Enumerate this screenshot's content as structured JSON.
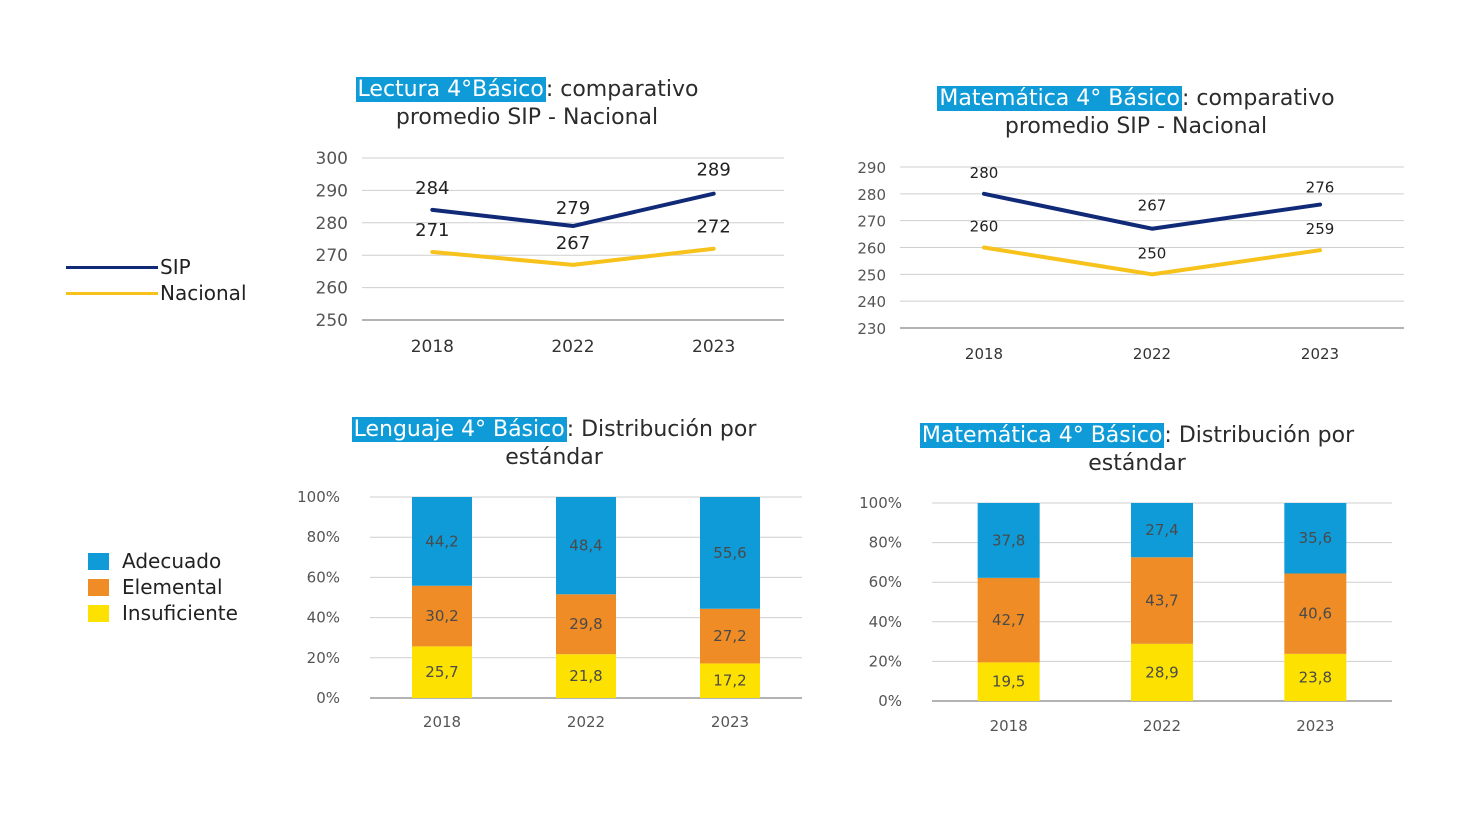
{
  "legend_top": {
    "items": [
      {
        "label": "SIP",
        "color": "#102a78"
      },
      {
        "label": "Nacional",
        "color": "#f6c21b"
      }
    ]
  },
  "legend_bottom": {
    "items": [
      {
        "label": "Adecuado",
        "color": "#0e9bd8"
      },
      {
        "label": "Elemental",
        "color": "#ef8c25"
      },
      {
        "label": "Insuficiente",
        "color": "#fde100"
      }
    ]
  },
  "charts": {
    "lectura": {
      "title_highlight": "Lectura 4°Básico",
      "title_rest": ": comparativo",
      "title_line2": "promedio SIP - Nacional"
    },
    "matematica_line": {
      "title_highlight": "Matemática 4° Básico",
      "title_rest": ": comparativo",
      "title_line2": "promedio SIP - Nacional"
    },
    "lenguaje": {
      "title_highlight": "Lenguaje 4° Básico",
      "title_rest": ": Distribución por",
      "title_line2": "estándar"
    },
    "matematica_bar": {
      "title_highlight": "Matemática 4° Básico",
      "title_rest": ": Distribución por",
      "title_line2": "estándar"
    }
  },
  "chart_data": [
    {
      "type": "line",
      "title": "Lectura 4°Básico: comparativo promedio SIP - Nacional",
      "categories": [
        "2018",
        "2022",
        "2023"
      ],
      "ylim": [
        250,
        300
      ],
      "yticks": [
        250,
        260,
        270,
        280,
        290,
        300
      ],
      "grid": true,
      "series": [
        {
          "name": "SIP",
          "color": "#102a78",
          "values": [
            284,
            279,
            289
          ]
        },
        {
          "name": "Nacional",
          "color": "#f6c21b",
          "values": [
            271,
            267,
            272
          ]
        }
      ]
    },
    {
      "type": "line",
      "title": "Matemática 4° Básico: comparativo promedio SIP - Nacional",
      "categories": [
        "2018",
        "2022",
        "2023"
      ],
      "ylim": [
        230,
        290
      ],
      "yticks": [
        230,
        240,
        250,
        260,
        270,
        280,
        290
      ],
      "grid": true,
      "series": [
        {
          "name": "SIP",
          "color": "#102a78",
          "values": [
            280,
            267,
            276
          ]
        },
        {
          "name": "Nacional",
          "color": "#f6c21b",
          "values": [
            260,
            250,
            259
          ]
        }
      ]
    },
    {
      "type": "bar",
      "stacked": true,
      "title": "Lenguaje 4° Básico: Distribución por estándar",
      "categories": [
        "2018",
        "2022",
        "2023"
      ],
      "ylim": [
        0,
        100
      ],
      "yticks": [
        "0%",
        "20%",
        "40%",
        "60%",
        "80%",
        "100%"
      ],
      "grid": true,
      "series": [
        {
          "name": "Insuficiente",
          "color": "#fde100",
          "values": [
            25.7,
            21.8,
            17.2
          ],
          "labels": [
            "25,7",
            "21,8",
            "17,2"
          ]
        },
        {
          "name": "Elemental",
          "color": "#ef8c25",
          "values": [
            30.2,
            29.8,
            27.2
          ],
          "labels": [
            "30,2",
            "29,8",
            "27,2"
          ]
        },
        {
          "name": "Adecuado",
          "color": "#0e9bd8",
          "values": [
            44.2,
            48.4,
            55.6
          ],
          "labels": [
            "44,2",
            "48,4",
            "55,6"
          ]
        }
      ]
    },
    {
      "type": "bar",
      "stacked": true,
      "title": "Matemática 4° Básico: Distribución por estándar",
      "categories": [
        "2018",
        "2022",
        "2023"
      ],
      "ylim": [
        0,
        100
      ],
      "yticks": [
        "0%",
        "20%",
        "40%",
        "60%",
        "80%",
        "100%"
      ],
      "grid": true,
      "series": [
        {
          "name": "Insuficiente",
          "color": "#fde100",
          "values": [
            19.5,
            28.9,
            23.8
          ],
          "labels": [
            "19,5",
            "28,9",
            "23,8"
          ]
        },
        {
          "name": "Elemental",
          "color": "#ef8c25",
          "values": [
            42.7,
            43.7,
            40.6
          ],
          "labels": [
            "42,7",
            "43,7",
            "40,6"
          ]
        },
        {
          "name": "Adecuado",
          "color": "#0e9bd8",
          "values": [
            37.8,
            27.4,
            35.6
          ],
          "labels": [
            "37,8",
            "27,4",
            "35,6"
          ]
        }
      ]
    }
  ]
}
